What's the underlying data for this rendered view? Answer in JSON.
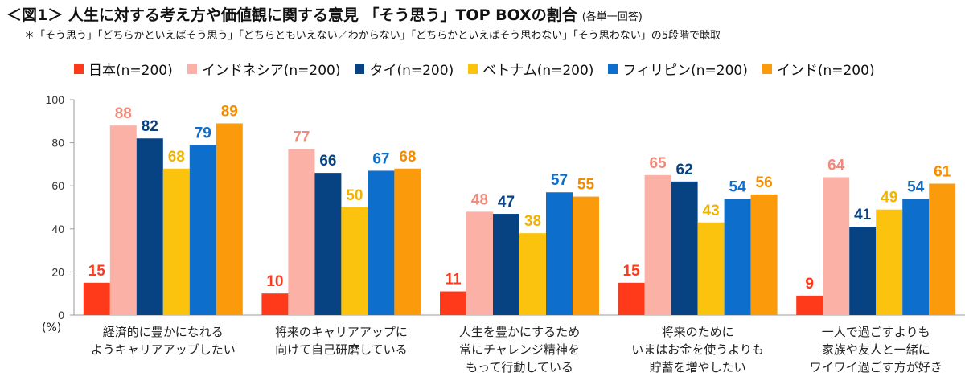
{
  "header": {
    "title": "＜図1＞ 人生に対する考え方や価値観に関する意見 「そう思う」TOP BOXの割合",
    "title_note": "(各単一回答)",
    "subtitle": "＊「そう思う」「どちらかといえばそう思う」「どちらともいえない／わからない」「どちらかといえばそう思わない」「そう思わない」の5段階で聴取"
  },
  "chart_data": {
    "type": "bar",
    "unit_label": "(%)",
    "ylim": [
      0,
      100
    ],
    "yticks": [
      0,
      20,
      40,
      60,
      80,
      100
    ],
    "grid": false,
    "legend_position": "top",
    "categories": [
      [
        "経済的に豊かになれる",
        "ようキャリアアップしたい"
      ],
      [
        "将来のキャリアアップに",
        "向けて自己研磨している"
      ],
      [
        "人生を豊かにするため",
        "常にチャレンジ精神を",
        "もって行動している"
      ],
      [
        "将来のために",
        "いまはお金を使うよりも",
        "貯蓄を増やしたい"
      ],
      [
        "一人で過ごすよりも",
        "家族や友人と一緒に",
        "ワイワイ過ごす方が好き"
      ]
    ],
    "series": [
      {
        "name": "日本(n=200)",
        "color": "#ff3a1a",
        "label_color": "#ff3a1a",
        "values": [
          15,
          10,
          11,
          15,
          9
        ]
      },
      {
        "name": "インドネシア(n=200)",
        "color": "#fbb1a6",
        "label_color": "#f28a7c",
        "values": [
          88,
          77,
          48,
          65,
          64
        ]
      },
      {
        "name": "タイ(n=200)",
        "color": "#074383",
        "label_color": "#074383",
        "values": [
          82,
          66,
          47,
          62,
          41
        ]
      },
      {
        "name": "ベトナム(n=200)",
        "color": "#fcc30e",
        "label_color": "#f2b300",
        "values": [
          68,
          50,
          38,
          43,
          49
        ]
      },
      {
        "name": "フィリピン(n=200)",
        "color": "#0e6ecb",
        "label_color": "#0e6ecb",
        "values": [
          79,
          67,
          57,
          54,
          54
        ]
      },
      {
        "name": "インド(n=200)",
        "color": "#fb9b0c",
        "label_color": "#f58c00",
        "values": [
          89,
          68,
          55,
          56,
          61
        ]
      }
    ]
  }
}
